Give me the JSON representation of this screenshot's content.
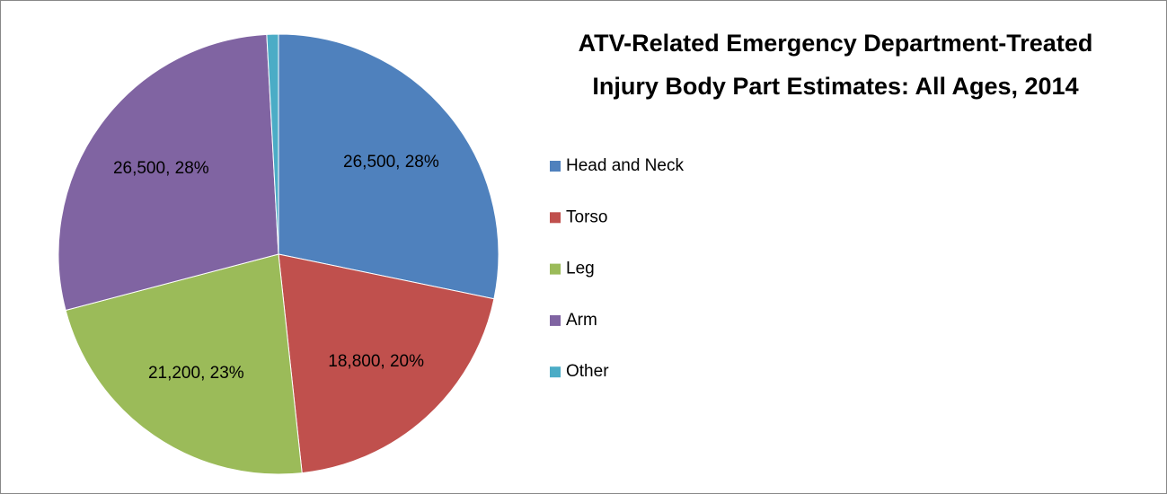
{
  "chart_data": {
    "type": "pie",
    "title": [
      "ATV-Related Emergency Department-Treated",
      "Injury Body Part Estimates: All Ages, 2014"
    ],
    "categories": [
      "Head and Neck",
      "Torso",
      "Leg",
      "Arm",
      "Other"
    ],
    "values": [
      26500,
      18800,
      21200,
      26500,
      800
    ],
    "value_labels": [
      "26,500, 28%",
      "18,800, 20%",
      "21,200, 23%",
      "26,500, 28%",
      null
    ],
    "colors": [
      "#4f81bd",
      "#c0504d",
      "#9bbb59",
      "#8064a2",
      "#4bacc6"
    ],
    "legend": "right"
  }
}
